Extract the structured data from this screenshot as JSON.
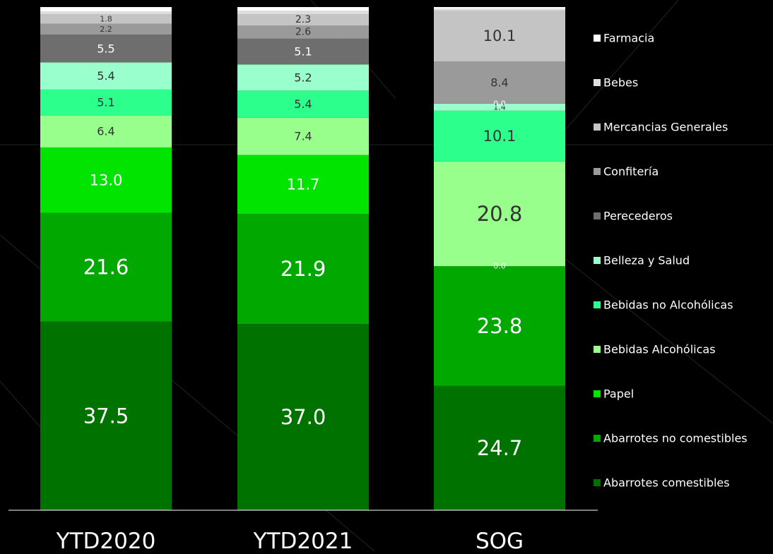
{
  "chart_data": {
    "type": "bar",
    "stacked": true,
    "categories": [
      "YTD2020",
      "YTD2021",
      "SOG"
    ],
    "ylim": [
      0,
      100
    ],
    "legend_position": "right",
    "grid": false,
    "series": [
      {
        "name": "Abarrotes comestibles",
        "color": "#007200",
        "values": [
          37.5,
          37.0,
          24.7
        ]
      },
      {
        "name": "Abarrotes no comestibles",
        "color": "#00a800",
        "values": [
          21.6,
          21.9,
          23.8
        ]
      },
      {
        "name": "Papel",
        "color": "#00e400",
        "values": [
          13.0,
          11.7,
          0.0
        ]
      },
      {
        "name": "Bebidas Alcohólicas",
        "color": "#99ff8c",
        "values": [
          6.4,
          7.4,
          20.8
        ]
      },
      {
        "name": "Bebidas no Alcohólicas",
        "color": "#2dff8c",
        "values": [
          5.1,
          5.4,
          10.1
        ]
      },
      {
        "name": "Belleza y Salud",
        "color": "#99ffcc",
        "values": [
          5.4,
          5.2,
          1.4
        ]
      },
      {
        "name": "Perecederos",
        "color": "#6e6e6e",
        "values": [
          5.5,
          5.1,
          0.0
        ]
      },
      {
        "name": "Confitería",
        "color": "#9a9a9a",
        "values": [
          2.2,
          2.6,
          8.4
        ]
      },
      {
        "name": "Mercancias Generales",
        "color": "#c4c4c4",
        "values": [
          1.8,
          2.3,
          10.1
        ]
      },
      {
        "name": "Bebes",
        "color": "#dedede",
        "values": [
          0.6,
          0.6,
          0.3
        ]
      },
      {
        "name": "Farmacia",
        "color": "#ffffff",
        "values": [
          0.9,
          0.8,
          0.4
        ]
      }
    ],
    "data_labels": [
      [
        {
          "series": 0,
          "text": "37.5"
        },
        {
          "series": 1,
          "text": "21.6"
        },
        {
          "series": 2,
          "text": "13.0"
        },
        {
          "series": 3,
          "text": "6.4"
        },
        {
          "series": 4,
          "text": "5.1"
        },
        {
          "series": 5,
          "text": "5.4"
        },
        {
          "series": 6,
          "text": "5.5"
        },
        {
          "series": 7,
          "text": "2.2"
        },
        {
          "series": 8,
          "text": "1.8"
        }
      ],
      [
        {
          "series": 0,
          "text": "37.0"
        },
        {
          "series": 1,
          "text": "21.9"
        },
        {
          "series": 2,
          "text": "11.7"
        },
        {
          "series": 3,
          "text": "7.4"
        },
        {
          "series": 4,
          "text": "5.4"
        },
        {
          "series": 5,
          "text": "5.2"
        },
        {
          "series": 6,
          "text": "5.1"
        },
        {
          "series": 7,
          "text": "2.6"
        },
        {
          "series": 8,
          "text": "2.3"
        }
      ],
      [
        {
          "series": 0,
          "text": "24.7"
        },
        {
          "series": 1,
          "text": "23.8"
        },
        {
          "series": 2,
          "text": "0.0"
        },
        {
          "series": 3,
          "text": "20.8"
        },
        {
          "series": 4,
          "text": "10.1"
        },
        {
          "series": 5,
          "text": "1.4"
        },
        {
          "series": 6,
          "text": "0.0"
        },
        {
          "series": 7,
          "text": "8.4"
        },
        {
          "series": 8,
          "text": "10.1"
        }
      ]
    ]
  }
}
